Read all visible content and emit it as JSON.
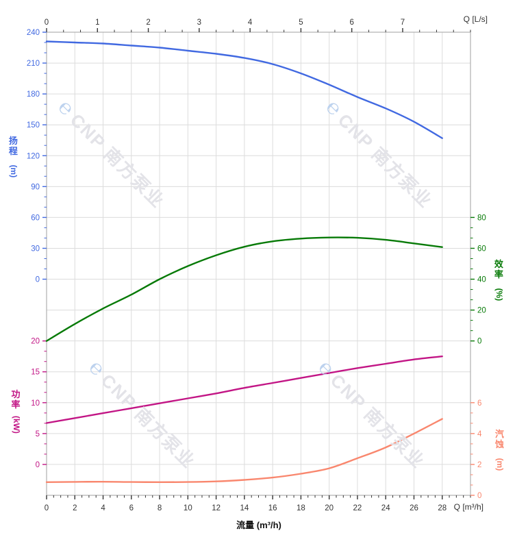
{
  "watermark": {
    "logo_glyph": "℮",
    "text": "CNP 南方泵业"
  },
  "colors": {
    "head": "#4169E1",
    "efficiency": "#077A07",
    "power": "#C21585",
    "npsh": "#F9876E",
    "axis_black": "#333333",
    "grid": "#DCDCDC",
    "border": "#AFAFAF",
    "watermark_text": "#E3E3E8",
    "watermark_logo": "#BDD2EE"
  },
  "chart_data": {
    "type": "line",
    "title": "",
    "grid": "on",
    "legend": "none",
    "x_axis_bottom": {
      "label": "流量 (m³/h)",
      "corner_label": "Q [m³/h]",
      "range": [
        0,
        30
      ],
      "major_ticks": [
        0,
        2,
        4,
        6,
        8,
        10,
        12,
        14,
        16,
        18,
        20,
        22,
        24,
        26,
        28
      ],
      "minor_step": 0.5
    },
    "x_axis_top": {
      "label": "Q [L/s]",
      "range": [
        0,
        8.3333
      ],
      "major_ticks": [
        0,
        1,
        2,
        3,
        4,
        5,
        6,
        7
      ],
      "minor_step": 0.33333
    },
    "y_axes": [
      {
        "id": "head",
        "label": "扬程",
        "unit": "(m)",
        "side": "left",
        "color": "#4169E1",
        "range": [
          0,
          240
        ],
        "major_ticks": [
          0,
          30,
          60,
          90,
          120,
          150,
          180,
          210,
          240
        ],
        "minor_step": 10
      },
      {
        "id": "power",
        "label": "功率",
        "unit": "(kW)",
        "side": "left",
        "color": "#C21585",
        "range": [
          0,
          20
        ],
        "major_ticks": [
          0,
          5,
          10,
          15,
          20
        ],
        "minor_step": 1.6667
      },
      {
        "id": "efficiency",
        "label": "效率",
        "unit": "(%)",
        "side": "right",
        "color": "#077A07",
        "range": [
          0,
          80
        ],
        "major_ticks": [
          0,
          20,
          40,
          60,
          80
        ],
        "minor_step": 6.6667
      },
      {
        "id": "npsh",
        "label": "汽蚀",
        "unit": "(m)",
        "side": "right",
        "color": "#F9876E",
        "range": [
          0,
          6
        ],
        "major_ticks": [
          0,
          2,
          4,
          6
        ],
        "minor_step": 0.6667
      }
    ],
    "series": [
      {
        "name": "head",
        "axis": "head",
        "color": "#4169E1",
        "x": [
          0,
          2,
          4,
          6,
          8,
          10,
          12,
          14,
          16,
          18,
          20,
          22,
          24,
          26,
          28
        ],
        "y": [
          231,
          230,
          229,
          227,
          225,
          222,
          219,
          215,
          209,
          200,
          189,
          177,
          166,
          153,
          137
        ]
      },
      {
        "name": "efficiency",
        "axis": "efficiency",
        "color": "#077A07",
        "x": [
          0,
          2,
          4,
          6,
          8,
          10,
          12,
          14,
          16,
          18,
          20,
          22,
          24,
          26,
          28
        ],
        "y": [
          0,
          11,
          21,
          30,
          40,
          48.5,
          55.5,
          61,
          64.5,
          66.3,
          67,
          66.8,
          65.5,
          63.2,
          60.8
        ]
      },
      {
        "name": "power",
        "axis": "power",
        "color": "#C21585",
        "x": [
          0,
          2,
          4,
          6,
          8,
          10,
          12,
          14,
          16,
          18,
          20,
          22,
          24,
          26,
          28
        ],
        "y": [
          6.7,
          7.5,
          8.3,
          9.1,
          9.9,
          10.7,
          11.5,
          12.4,
          13.2,
          14.0,
          14.8,
          15.6,
          16.3,
          17.0,
          17.5
        ]
      },
      {
        "name": "npsh",
        "axis": "npsh",
        "color": "#F9876E",
        "x": [
          0,
          2,
          4,
          6,
          8,
          10,
          12,
          14,
          16,
          18,
          20,
          22,
          24,
          26,
          28
        ],
        "y": [
          0.85,
          0.87,
          0.88,
          0.86,
          0.85,
          0.86,
          0.9,
          1.0,
          1.15,
          1.4,
          1.75,
          2.4,
          3.1,
          4.0,
          4.95
        ]
      }
    ]
  }
}
